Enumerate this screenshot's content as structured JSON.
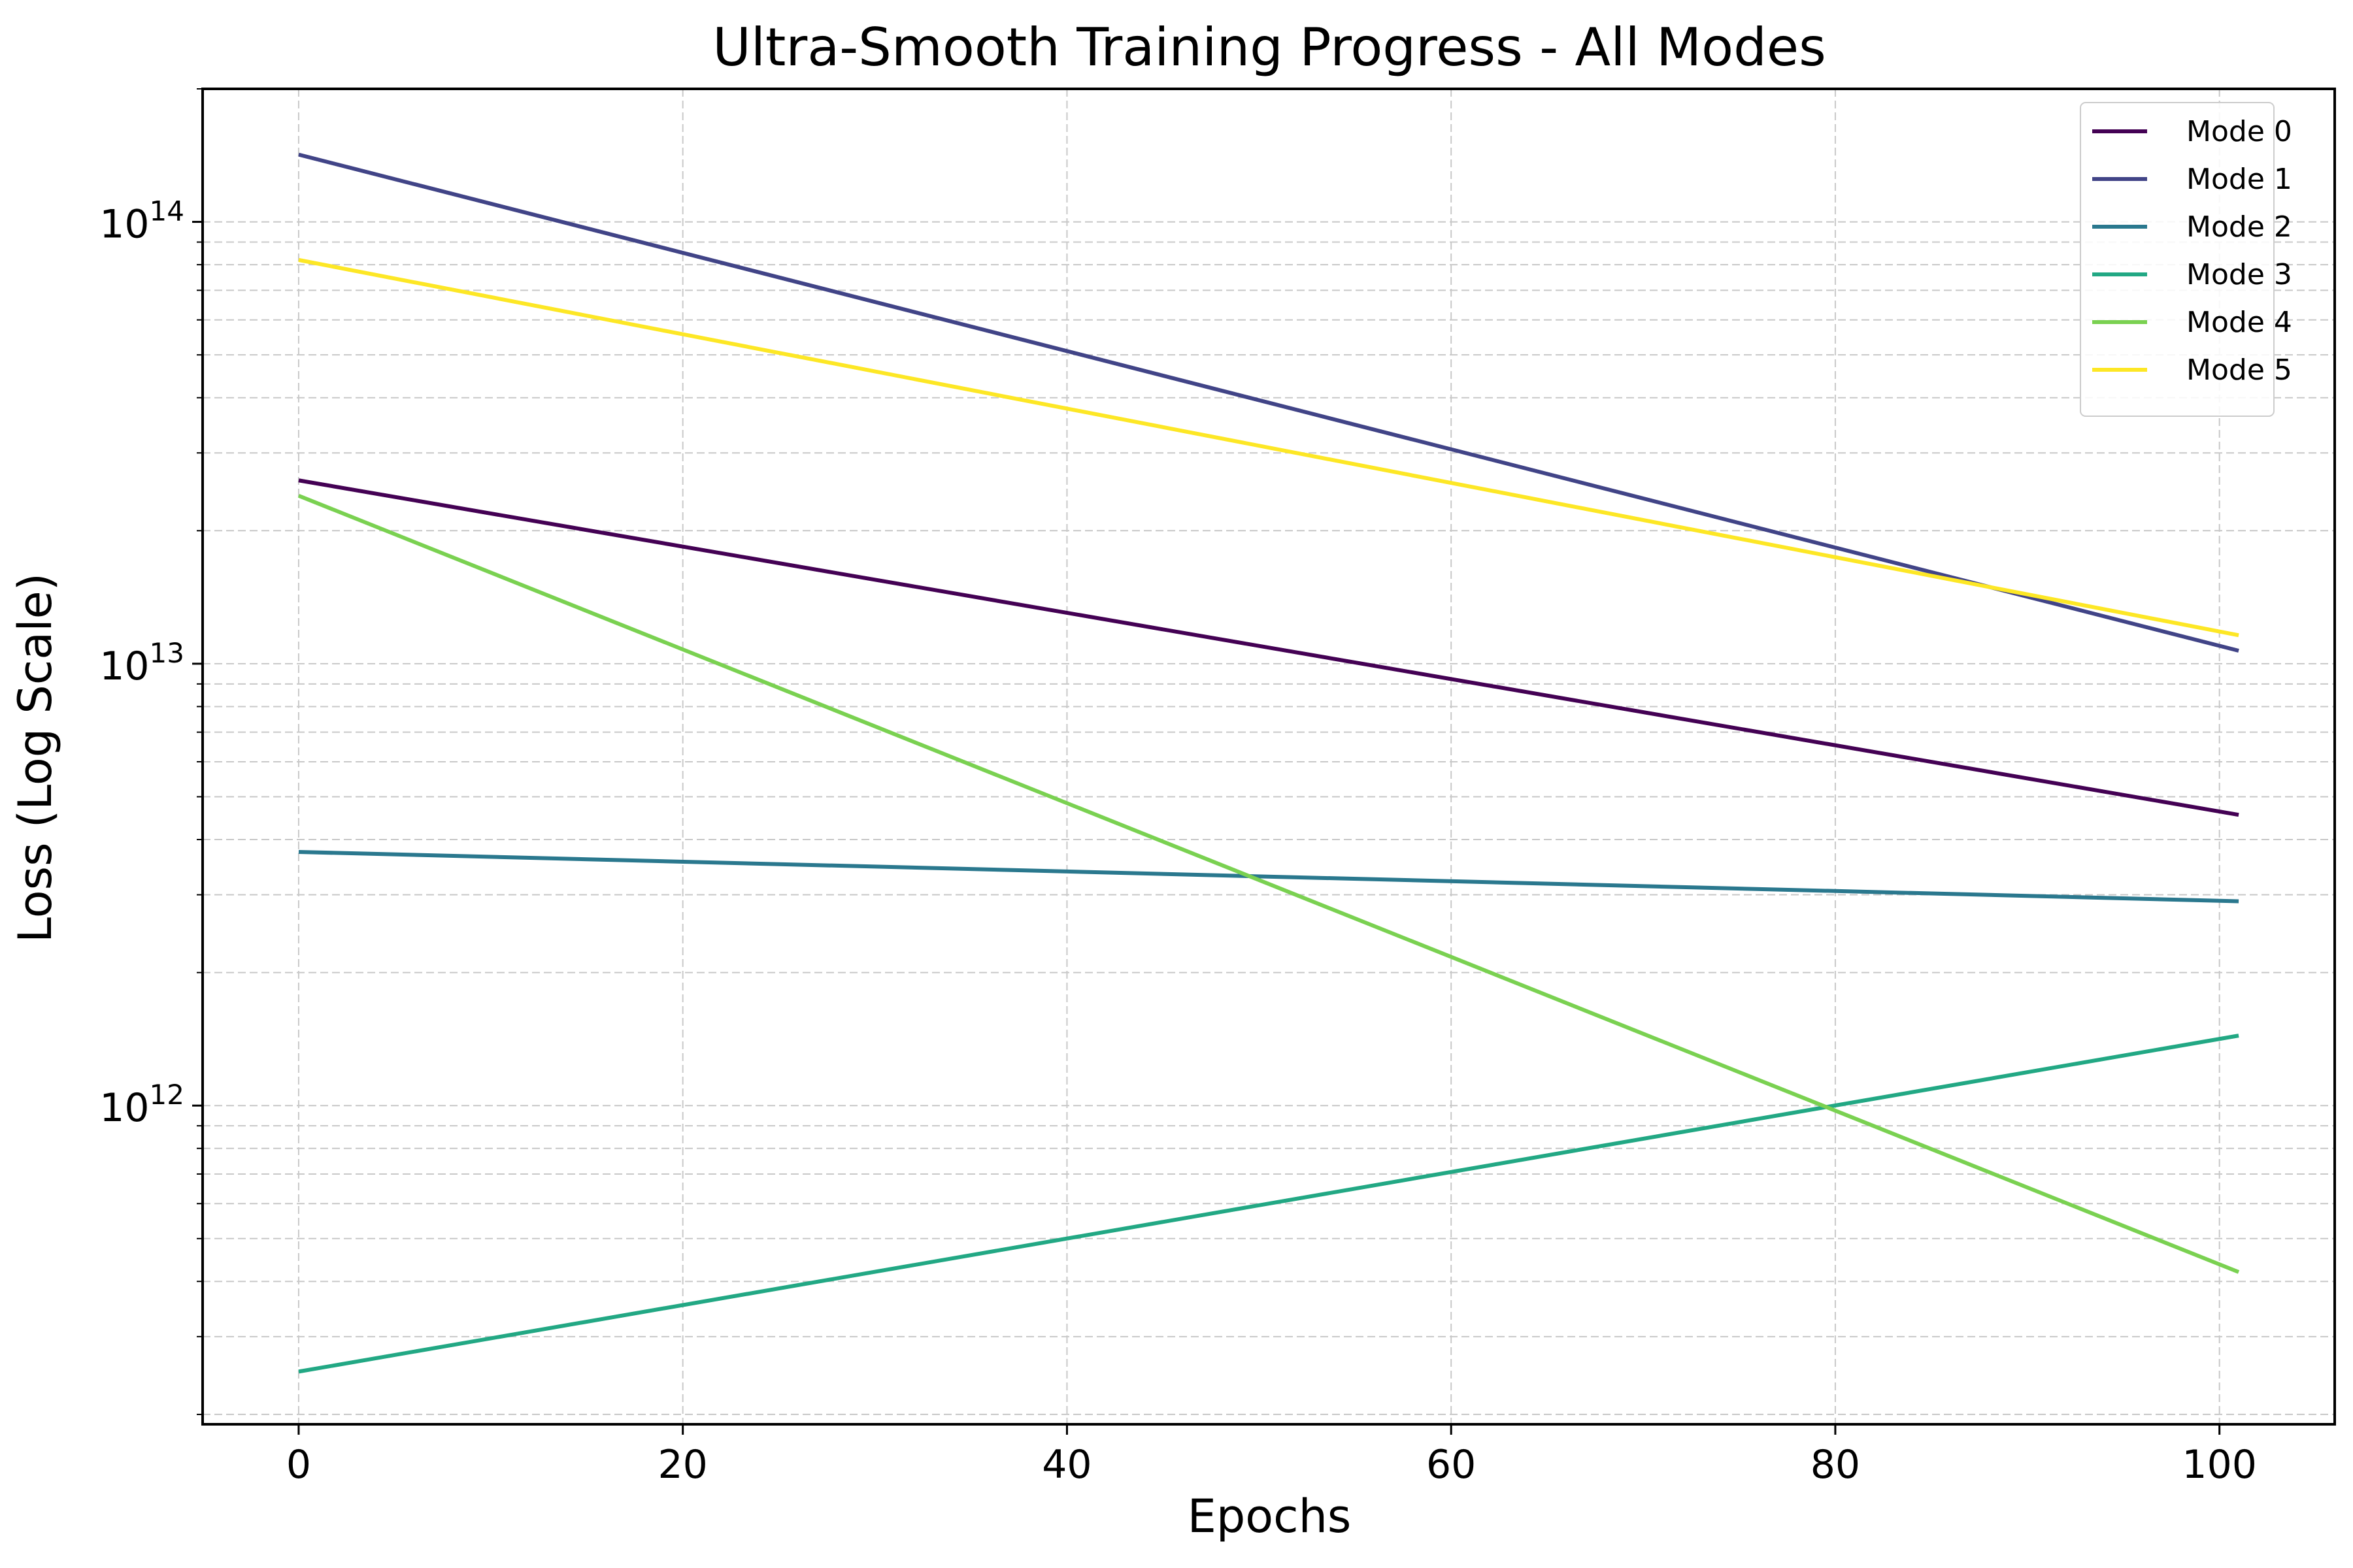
{
  "chart_data": {
    "type": "line",
    "title": "Ultra-Smooth Training Progress - All Modes",
    "xlabel": "Epochs",
    "ylabel": "Loss (Log Scale)",
    "xlim": [
      -5,
      106
    ],
    "ylim": [
      190000000000.0,
      200000000000000.0
    ],
    "yscale": "log",
    "xticks": [
      0,
      20,
      40,
      60,
      80,
      100
    ],
    "yticks": [
      {
        "value": 1000000000000.0,
        "base": "10",
        "exp": "12"
      },
      {
        "value": 10000000000000.0,
        "base": "10",
        "exp": "13"
      },
      {
        "value": 100000000000000.0,
        "base": "10",
        "exp": "14"
      }
    ],
    "grid": true,
    "legend_position": "top-right",
    "series": [
      {
        "name": "Mode 0",
        "color": "#440154",
        "x": [
          0,
          101
        ],
        "y": [
          26000000000000.0,
          4550000000000.0
        ]
      },
      {
        "name": "Mode 1",
        "color": "#414487",
        "x": [
          0,
          101
        ],
        "y": [
          142000000000000.0,
          10700000000000.0
        ]
      },
      {
        "name": "Mode 2",
        "color": "#2a788e",
        "x": [
          0,
          101
        ],
        "y": [
          3750000000000.0,
          2900000000000.0
        ]
      },
      {
        "name": "Mode 3",
        "color": "#22a884",
        "x": [
          0,
          101
        ],
        "y": [
          250000000000.0,
          1440000000000.0
        ]
      },
      {
        "name": "Mode 4",
        "color": "#7ad151",
        "x": [
          0,
          101
        ],
        "y": [
          24000000000000.0,
          420000000000.0
        ]
      },
      {
        "name": "Mode 5",
        "color": "#fde725",
        "x": [
          0,
          101
        ],
        "y": [
          82000000000000.0,
          11600000000000.0
        ]
      }
    ]
  }
}
